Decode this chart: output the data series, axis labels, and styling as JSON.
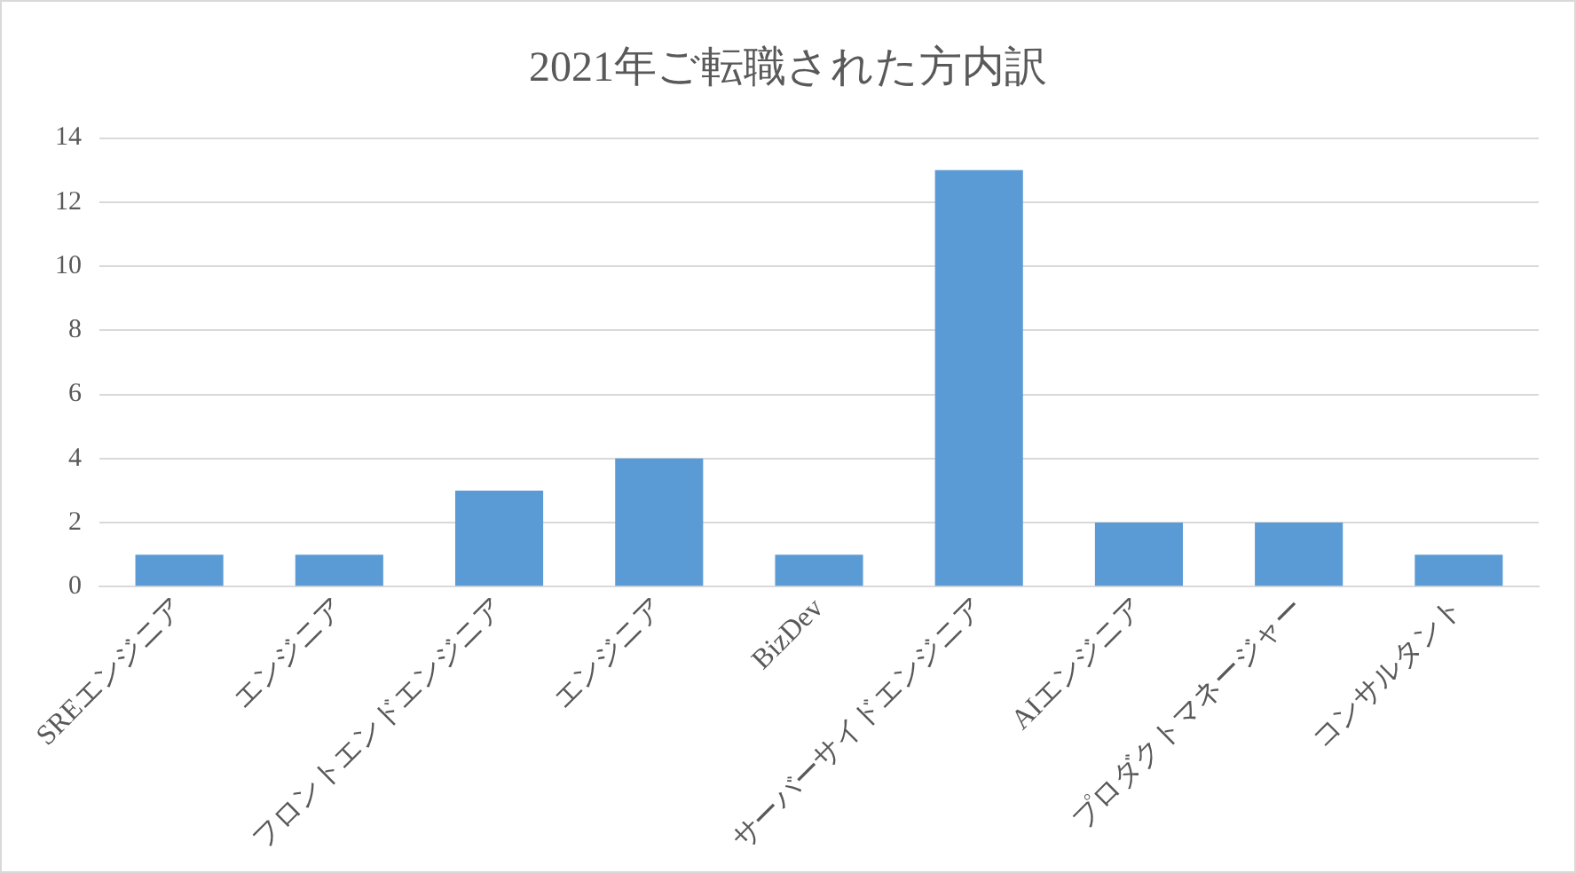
{
  "chart_data": {
    "type": "bar",
    "title": "2021年ご転職された方内訳",
    "categories": [
      "SREエンジニア",
      "エンジニア",
      "フロントエンドエンジニア",
      "エンジニア",
      "BizDev",
      "サーバーサイドエンジニア",
      "AIエンジニア",
      "プロダクトマネージャー",
      "コンサルタント"
    ],
    "values": [
      1,
      1,
      3,
      4,
      1,
      13,
      2,
      2,
      1
    ],
    "color": "#5b9bd5",
    "ylim": [
      0,
      14
    ],
    "yticks": [
      0,
      2,
      4,
      6,
      8,
      10,
      12,
      14
    ],
    "grid": "y"
  }
}
